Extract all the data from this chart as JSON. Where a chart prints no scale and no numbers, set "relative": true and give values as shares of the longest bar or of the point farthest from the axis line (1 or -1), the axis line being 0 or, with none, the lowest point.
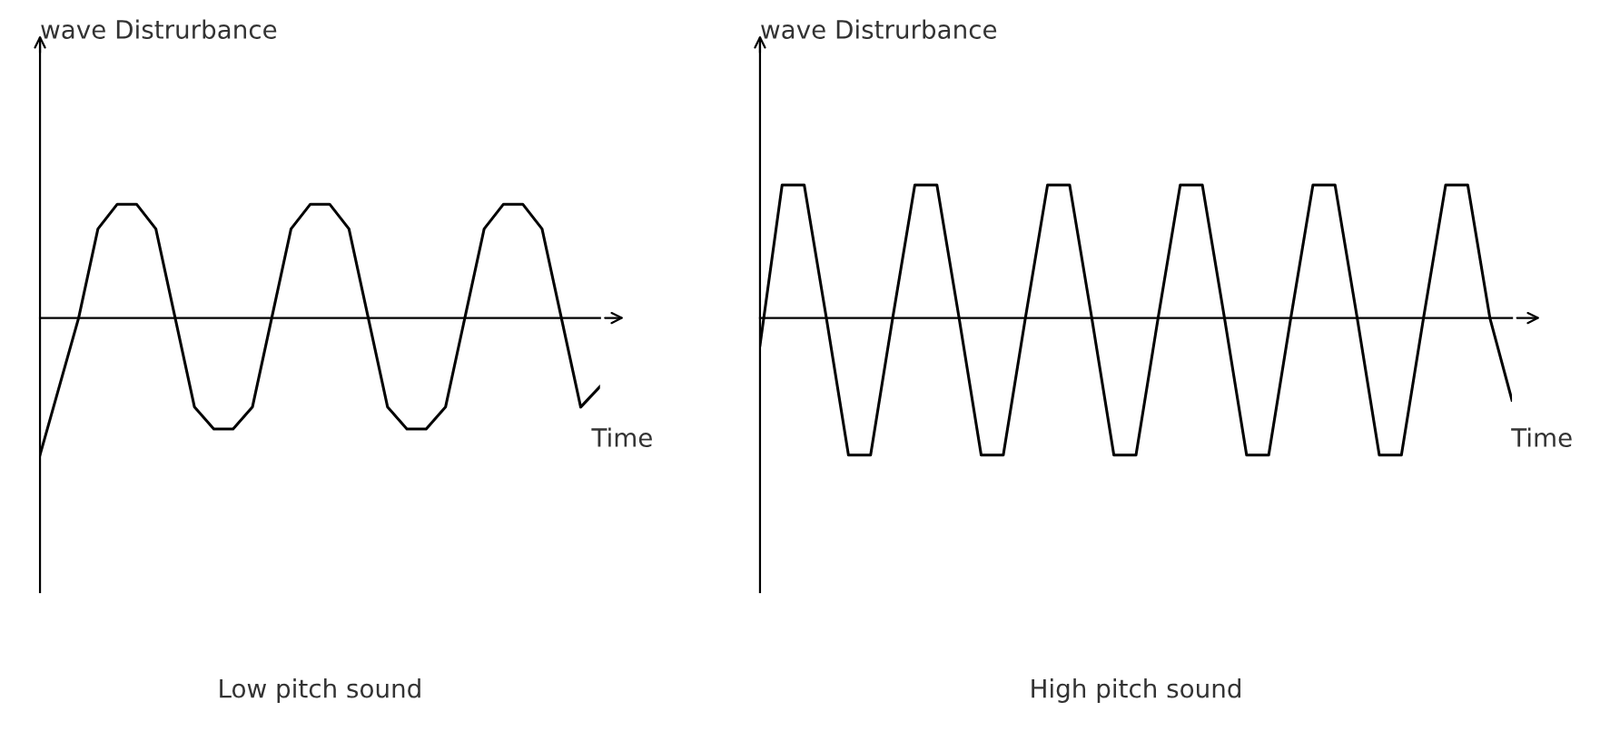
{
  "chart_data": [
    {
      "type": "line",
      "relative": true,
      "title": "Low pitch sound",
      "xlabel": "Time",
      "ylabel": "wave Distrurbance",
      "marker": "none",
      "line_style": "solid",
      "grid": false,
      "legend": false,
      "categories": [
        null,
        null,
        null,
        null,
        null,
        null,
        null,
        null,
        null,
        null,
        null,
        null,
        null,
        null,
        null,
        null,
        null,
        null,
        null,
        null,
        null,
        null,
        null,
        null,
        null,
        null,
        null,
        null,
        null,
        null
      ],
      "series": [
        {
          "color": "#000000",
          "values": [
            -1,
            -0.5,
            0,
            0.65,
            0.83,
            0.83,
            0.65,
            0,
            -0.65,
            -0.81,
            -0.81,
            -0.65,
            0,
            0.65,
            0.83,
            0.83,
            0.65,
            0,
            -0.65,
            -0.81,
            -0.81,
            -0.65,
            0,
            0.65,
            0.83,
            0.83,
            0.65,
            0,
            -0.65,
            -0.5
          ]
        }
      ]
    },
    {
      "type": "line",
      "relative": true,
      "title": "High pitch sound",
      "xlabel": "Time",
      "ylabel": "wave Distrurbance",
      "marker": "none",
      "line_style": "solid",
      "grid": false,
      "legend": false,
      "categories": [
        null,
        null,
        null,
        null,
        null,
        null,
        null,
        null,
        null,
        null,
        null,
        null,
        null,
        null,
        null,
        null,
        null,
        null,
        null,
        null,
        null,
        null,
        null,
        null,
        null,
        null,
        null,
        null,
        null,
        null,
        null,
        null,
        null,
        null,
        null
      ],
      "series": [
        {
          "color": "#000000",
          "values": [
            -0.2,
            0.97,
            0.97,
            0,
            -1,
            -1,
            0,
            0.97,
            0.97,
            0,
            -1,
            -1,
            0,
            0.97,
            0.97,
            0,
            -1,
            -1,
            0,
            0.97,
            0.97,
            0,
            -1,
            -1,
            0,
            0.97,
            0.97,
            0,
            -1,
            -1,
            0,
            0.97,
            0.97,
            0,
            -0.6
          ]
        }
      ]
    }
  ]
}
